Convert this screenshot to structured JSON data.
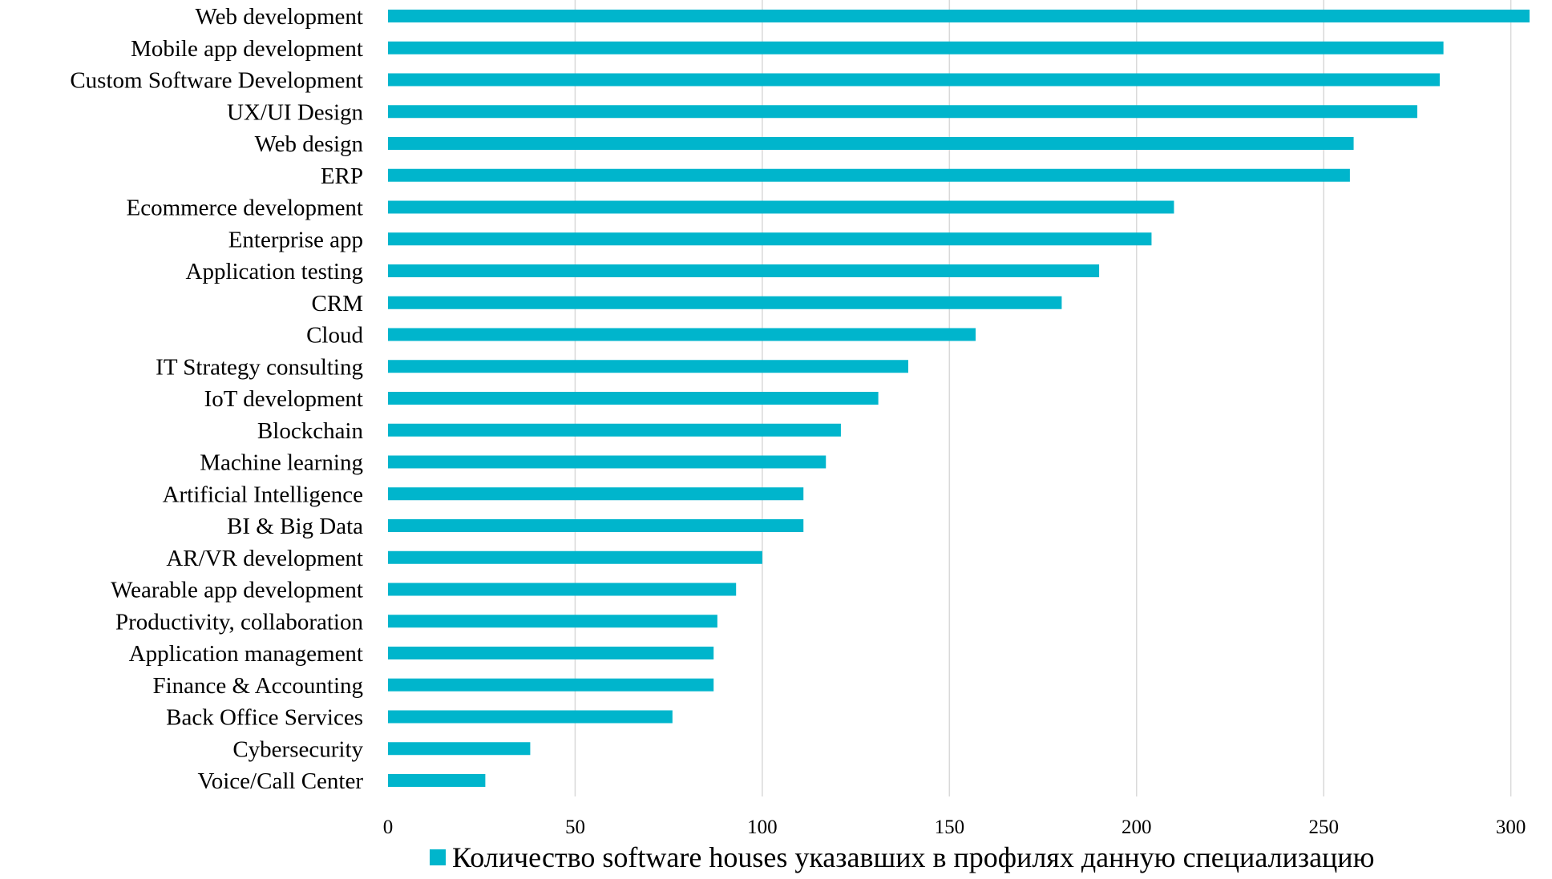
{
  "chart_data": {
    "type": "bar",
    "orientation": "horizontal",
    "categories": [
      "Web development",
      "Mobile app development",
      "Custom Software Development",
      "UX/UI Design",
      "Web design",
      "ERP",
      "Ecommerce development",
      "Enterprise app",
      "Application testing",
      "CRM",
      "Cloud",
      "IT Strategy consulting",
      "IoT development",
      "Blockchain",
      "Machine learning",
      "Artificial Intelligence",
      "BI & Big Data",
      "AR/VR development",
      "Wearable app development",
      "Productivity, collaboration",
      "Application management",
      "Finance & Accounting",
      "Back Office Services",
      "Cybersecurity",
      "Voice/Call Center"
    ],
    "series": [
      {
        "name": "Количество software houses указавших в профилях данную специализацию",
        "color": "#00B5CC",
        "values": [
          305,
          282,
          281,
          275,
          258,
          257,
          210,
          204,
          190,
          180,
          157,
          139,
          131,
          121,
          117,
          111,
          111,
          100,
          93,
          88,
          87,
          87,
          76,
          38,
          26
        ]
      }
    ],
    "xlim": [
      0,
      305
    ],
    "xticks": [
      0,
      50,
      100,
      150,
      200,
      250,
      300
    ],
    "grid": "vertical",
    "legend_position": "bottom",
    "gridline_color": "#D9D9D9"
  }
}
